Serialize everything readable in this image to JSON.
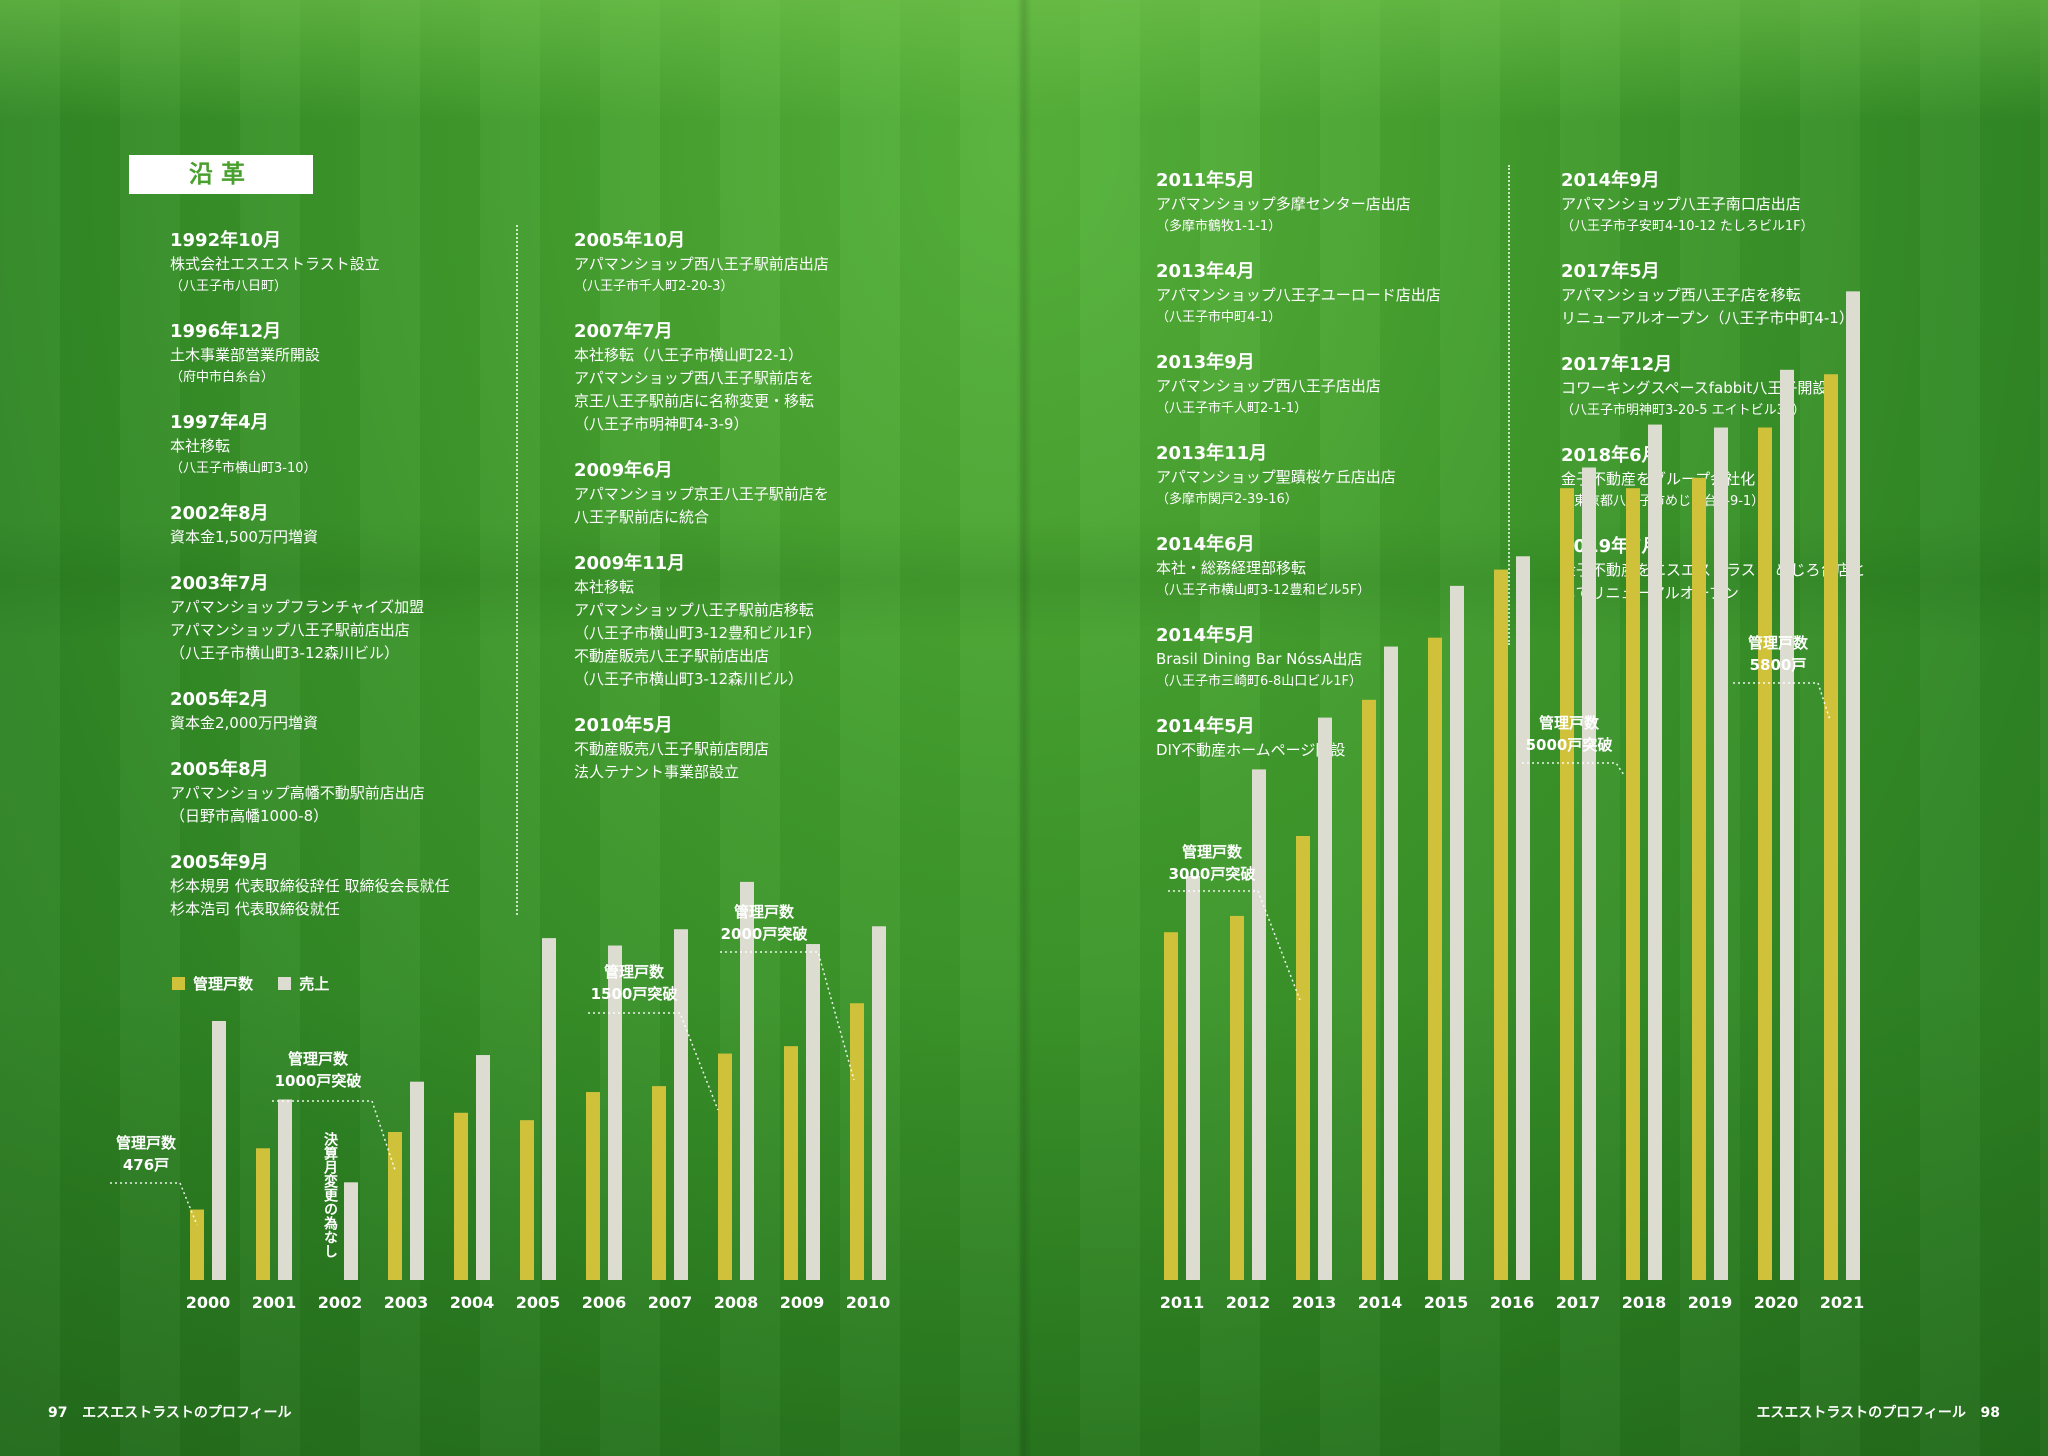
{
  "title": "沿革",
  "history_col1": [
    {
      "date": "1992年10月",
      "lines": [
        "株式会社エスエストラスト設立"
      ],
      "small": [
        "（八王子市八日町）"
      ]
    },
    {
      "date": "1996年12月",
      "lines": [
        "土木事業部営業所開設"
      ],
      "small": [
        "（府中市白糸台）"
      ]
    },
    {
      "date": "1997年4月",
      "lines": [
        "本社移転"
      ],
      "small": [
        "（八王子市横山町3-10）"
      ]
    },
    {
      "date": "2002年8月",
      "lines": [
        "資本金1,500万円増資"
      ],
      "small": []
    },
    {
      "date": "2003年7月",
      "lines": [
        "アパマンショップフランチャイズ加盟",
        "アパマンショップ八王子駅前店出店",
        "（八王子市横山町3-12森川ビル）"
      ],
      "small": []
    },
    {
      "date": "2005年2月",
      "lines": [
        "資本金2,000万円増資"
      ],
      "small": []
    },
    {
      "date": "2005年8月",
      "lines": [
        "アパマンショップ高幡不動駅前店出店",
        "（日野市高幡1000-8）"
      ],
      "small": []
    },
    {
      "date": "2005年9月",
      "lines": [
        "杉本規男 代表取締役辞任 取締役会長就任",
        "杉本浩司 代表取締役就任"
      ],
      "small": []
    }
  ],
  "history_col2": [
    {
      "date": "2005年10月",
      "lines": [
        "アパマンショップ西八王子駅前店出店"
      ],
      "small": [
        "（八王子市千人町2-20-3）"
      ]
    },
    {
      "date": "2007年7月",
      "lines": [
        "本社移転（八王子市横山町22-1）",
        "アパマンショップ西八王子駅前店を",
        "京王八王子駅前店に名称変更・移転",
        "（八王子市明神町4-3-9）"
      ],
      "small": []
    },
    {
      "date": "2009年6月",
      "lines": [
        "アパマンショップ京王八王子駅前店を",
        "八王子駅前店に統合"
      ],
      "small": []
    },
    {
      "date": "2009年11月",
      "lines": [
        "本社移転",
        "アパマンショップ八王子駅前店移転",
        "（八王子市横山町3-12豊和ビル1F）",
        "不動産販売八王子駅前店出店",
        "（八王子市横山町3-12森川ビル）"
      ],
      "small": []
    },
    {
      "date": "2010年5月",
      "lines": [
        "不動産販売八王子駅前店閉店",
        "法人テナント事業部設立"
      ],
      "small": []
    }
  ],
  "history_col3": [
    {
      "date": "2011年5月",
      "lines": [
        "アパマンショップ多摩センター店出店"
      ],
      "small": [
        "（多摩市鶴牧1-1-1）"
      ]
    },
    {
      "date": "2013年4月",
      "lines": [
        "アパマンショップ八王子ユーロード店出店"
      ],
      "small": [
        "（八王子市中町4-1）"
      ]
    },
    {
      "date": "2013年9月",
      "lines": [
        "アパマンショップ西八王子店出店"
      ],
      "small": [
        "（八王子市千人町2-1-1）"
      ]
    },
    {
      "date": "2013年11月",
      "lines": [
        "アパマンショップ聖蹟桜ケ丘店出店"
      ],
      "small": [
        "（多摩市関戸2-39-16）"
      ]
    },
    {
      "date": "2014年6月",
      "lines": [
        "本社・総務経理部移転"
      ],
      "small": [
        "（八王子市横山町3-12豊和ビル5F）"
      ]
    },
    {
      "date": "2014年5月",
      "lines": [
        "Brasil Dining Bar NóssA出店"
      ],
      "small": [
        "（八王子市三崎町6-8山口ビル1F）"
      ]
    },
    {
      "date": "2014年5月",
      "lines": [
        "DIY不動産ホームページ開設"
      ],
      "small": []
    }
  ],
  "history_col4": [
    {
      "date": "2014年9月",
      "lines": [
        "アパマンショップ八王子南口店出店"
      ],
      "small": [
        "（八王子市子安町4-10-12 たしろビル1F）"
      ]
    },
    {
      "date": "2017年5月",
      "lines": [
        "アパマンショップ西八王子店を移転",
        "リニューアルオープン（八王子市中町4-1）"
      ],
      "small": []
    },
    {
      "date": "2017年12月",
      "lines": [
        "コワーキングスペースfabbit八王子開設"
      ],
      "small": [
        "（八王子市明神町3-20-5 エイトビル3F）"
      ]
    },
    {
      "date": "2018年6月",
      "lines": [
        "金子不動産をグループ会社化"
      ],
      "small": [
        "（東京都八王子市めじろ台1-9-1）"
      ]
    },
    {
      "date": "2019年7月",
      "lines": [
        "金子不動産をエスエストラスト めじろ台店と",
        "してリニューアルオープン"
      ],
      "small": []
    }
  ],
  "legend": {
    "units": "管理戸数",
    "sales": "売上"
  },
  "note_2002": "決算月変更の為なし",
  "annotations": [
    {
      "lines": [
        "管理戸数",
        "476戸"
      ]
    },
    {
      "lines": [
        "管理戸数",
        "1000戸突破"
      ]
    },
    {
      "lines": [
        "管理戸数",
        "1500戸突破"
      ]
    },
    {
      "lines": [
        "管理戸数",
        "2000戸突破"
      ]
    },
    {
      "lines": [
        "管理戸数",
        "3000戸突破"
      ]
    },
    {
      "lines": [
        "管理戸数",
        "5000戸突破"
      ]
    },
    {
      "lines": [
        "管理戸数",
        "5800戸"
      ]
    }
  ],
  "chart_data": {
    "type": "bar",
    "categories": [
      "2000",
      "2001",
      "2002",
      "2003",
      "2004",
      "2005",
      "2006",
      "2007",
      "2008",
      "2009",
      "2010",
      "2011",
      "2012",
      "2013",
      "2014",
      "2015",
      "2016",
      "2017",
      "2018",
      "2019",
      "2020",
      "2021"
    ],
    "series": [
      {
        "name": "管理戸数",
        "color": "#cfc23a",
        "values": [
          476,
          890,
          null,
          1000,
          1130,
          1080,
          1270,
          1310,
          1530,
          1580,
          1870,
          2350,
          2460,
          3000,
          3920,
          4340,
          4800,
          5350,
          5350,
          5420,
          5760,
          6120
        ]
      },
      {
        "name": "売上",
        "color": "#dcddd0",
        "values": [
          1750,
          1220,
          660,
          1340,
          1520,
          2310,
          2260,
          2370,
          2690,
          2270,
          2390,
          2730,
          3450,
          3800,
          4280,
          4690,
          4890,
          5490,
          5780,
          5760,
          6150,
          6680
        ]
      }
    ],
    "xlabel": "",
    "ylabel": ""
  },
  "footer": {
    "left_num": "97",
    "left_text": "エスエストラストのプロフィール",
    "right_text": "エスエストラストのプロフィール",
    "right_num": "98"
  },
  "colors": {
    "grass": "#3f9a2b",
    "bar_units": "#cfc23a",
    "bar_sales": "#dcddd0",
    "title_text": "#4aa02e"
  }
}
